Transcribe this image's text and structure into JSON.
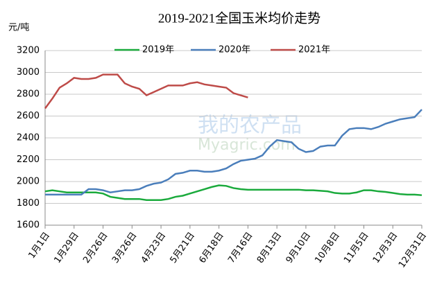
{
  "chart_data": {
    "type": "line",
    "title": "2019-2021全国玉米均价走势",
    "y_label": "元/吨",
    "watermark": "我的农产品",
    "watermark_url": "Myagric.com",
    "categories": [
      "1月1日",
      null,
      null,
      null,
      "1月29日",
      null,
      null,
      null,
      "2月26日",
      null,
      null,
      null,
      "3月26日",
      null,
      null,
      null,
      "4月23日",
      null,
      null,
      null,
      "5月21日",
      null,
      null,
      null,
      "6月18日",
      null,
      null,
      null,
      "7月16日",
      null,
      null,
      null,
      "8月13日",
      null,
      null,
      null,
      "9月10日",
      null,
      null,
      null,
      "10月8日",
      null,
      null,
      null,
      "11月5日",
      null,
      null,
      null,
      "12月3日",
      null,
      null,
      null,
      "12月31日"
    ],
    "series": [
      {
        "name": "2019年",
        "color": "#1aaa3c",
        "values": [
          1910,
          1920,
          1910,
          1900,
          1900,
          1900,
          1900,
          1900,
          1890,
          1860,
          1850,
          1840,
          1840,
          1840,
          1830,
          1830,
          1830,
          1840,
          1860,
          1870,
          1890,
          1910,
          1930,
          1950,
          1965,
          1960,
          1940,
          1930,
          1925,
          1925,
          1925,
          1925,
          1925,
          1925,
          1925,
          1925,
          1920,
          1920,
          1915,
          1910,
          1895,
          1890,
          1890,
          1900,
          1920,
          1920,
          1910,
          1905,
          1895,
          1885,
          1880,
          1880,
          1875
        ]
      },
      {
        "name": "2020年",
        "color": "#4a7ebb",
        "values": [
          1880,
          1880,
          1880,
          1880,
          1880,
          1880,
          1930,
          1930,
          1920,
          1900,
          1910,
          1920,
          1920,
          1930,
          1960,
          1980,
          1990,
          2020,
          2070,
          2080,
          2100,
          2100,
          2090,
          2090,
          2100,
          2120,
          2160,
          2190,
          2200,
          2210,
          2240,
          2320,
          2380,
          2370,
          2360,
          2300,
          2270,
          2280,
          2320,
          2330,
          2330,
          2420,
          2480,
          2490,
          2490,
          2480,
          2500,
          2530,
          2550,
          2570,
          2580,
          2590,
          2660
        ]
      },
      {
        "name": "2021年",
        "color": "#be4b48",
        "values": [
          2670,
          2760,
          2860,
          2900,
          2950,
          2940,
          2940,
          2950,
          2980,
          2980,
          2980,
          2900,
          2870,
          2850,
          2790,
          2820,
          2850,
          2880,
          2880,
          2880,
          2900,
          2910,
          2890,
          2880,
          2870,
          2860,
          2810,
          2790,
          2770,
          null,
          null,
          null,
          null,
          null,
          null,
          null,
          null,
          null,
          null,
          null,
          null,
          null,
          null,
          null,
          null,
          null,
          null,
          null,
          null,
          null,
          null,
          null,
          null
        ]
      }
    ],
    "ylim": [
      1600,
      3200
    ],
    "yticks": [
      1600,
      1800,
      2000,
      2200,
      2400,
      2600,
      2800,
      3000,
      3200
    ],
    "grid": true,
    "legend": "top"
  }
}
